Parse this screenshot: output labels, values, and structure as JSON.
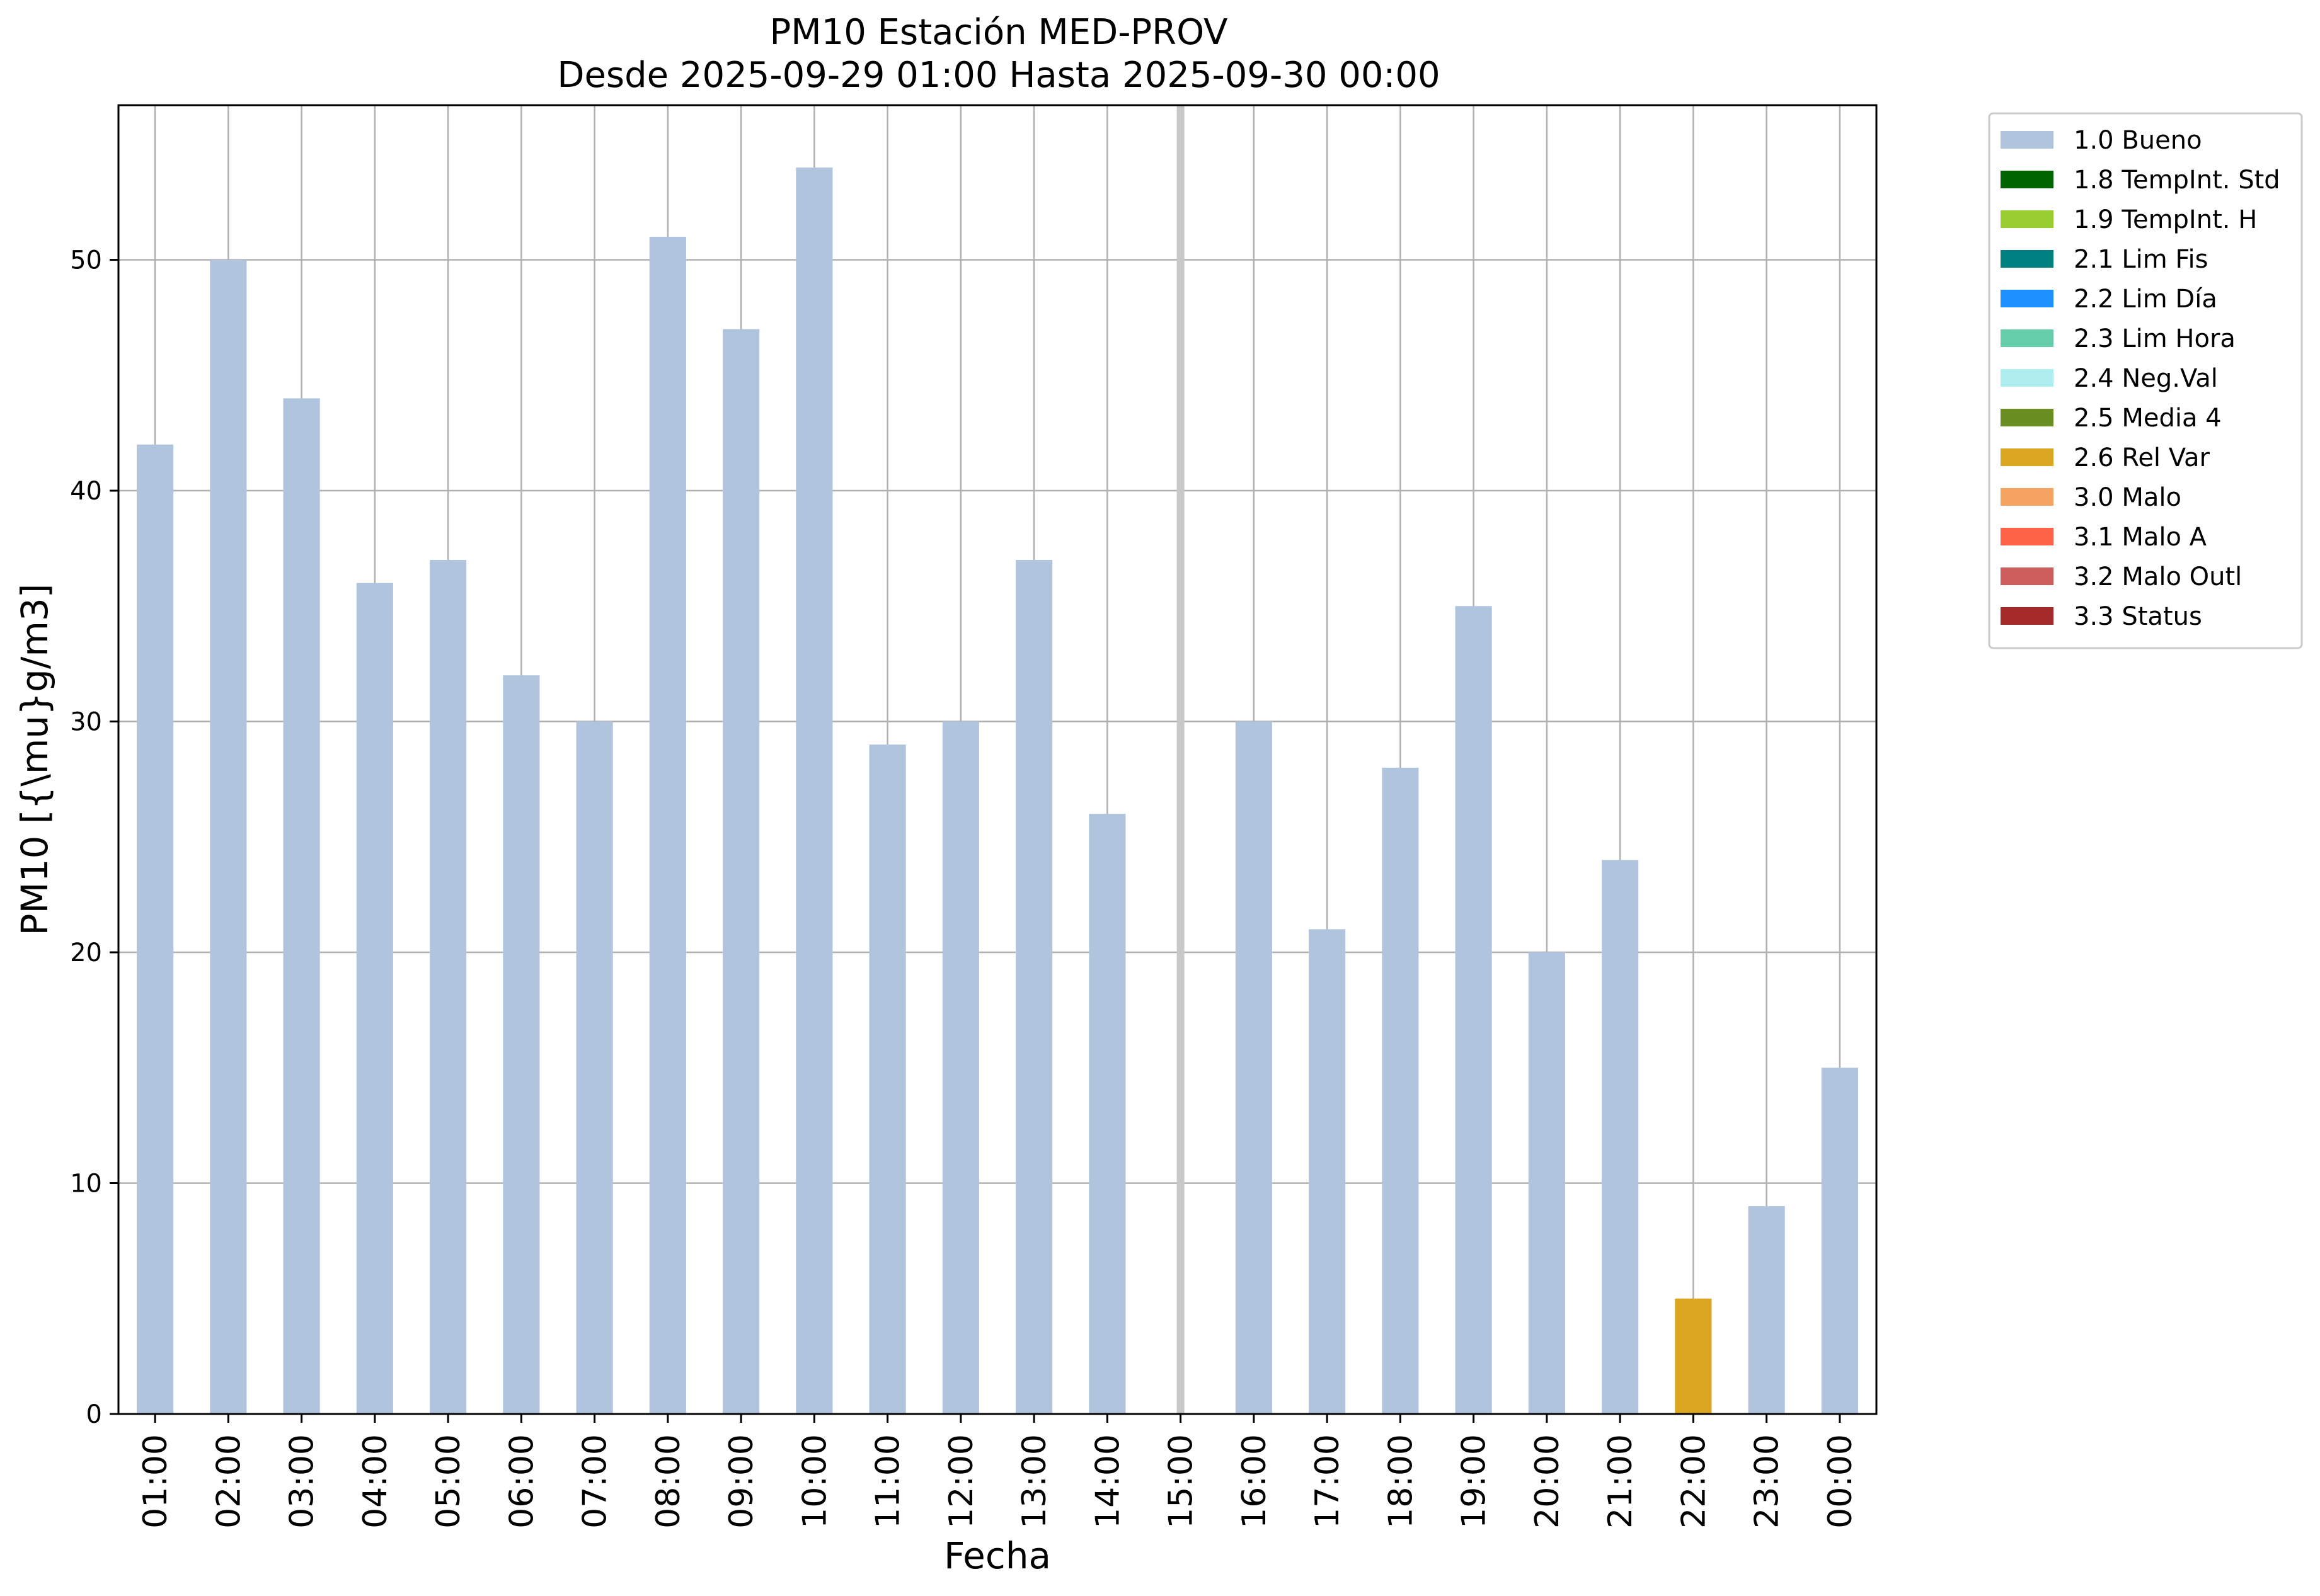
{
  "chart_data": {
    "type": "bar",
    "title": "PM10 Estación MED-PROV",
    "subtitle": "Desde 2025-09-29 01:00 Hasta 2025-09-30 00:00",
    "xlabel": "Fecha",
    "ylabel": "PM10 [{\\mu}g/m3]",
    "ylim": [
      0,
      56.7
    ],
    "yticks": [
      0,
      10,
      20,
      30,
      40,
      50
    ],
    "grid": true,
    "legend_position": "outside-top-right",
    "categories": [
      "01:00",
      "02:00",
      "03:00",
      "04:00",
      "05:00",
      "06:00",
      "07:00",
      "08:00",
      "09:00",
      "10:00",
      "11:00",
      "12:00",
      "13:00",
      "14:00",
      "15:00",
      "16:00",
      "17:00",
      "18:00",
      "19:00",
      "20:00",
      "21:00",
      "22:00",
      "23:00",
      "00:00"
    ],
    "values": [
      42,
      50,
      44,
      36,
      37,
      32,
      30,
      51,
      47,
      54,
      29,
      30,
      37,
      26,
      null,
      30,
      21,
      28,
      35,
      20,
      24,
      5,
      9,
      15
    ],
    "flags": [
      "1.0 Bueno",
      "1.0 Bueno",
      "1.0 Bueno",
      "1.0 Bueno",
      "1.0 Bueno",
      "1.0 Bueno",
      "1.0 Bueno",
      "1.0 Bueno",
      "1.0 Bueno",
      "1.0 Bueno",
      "1.0 Bueno",
      "1.0 Bueno",
      "1.0 Bueno",
      "1.0 Bueno",
      null,
      "1.0 Bueno",
      "1.0 Bueno",
      "1.0 Bueno",
      "1.0 Bueno",
      "1.0 Bueno",
      "1.0 Bueno",
      "2.6 Rel Var",
      "1.0 Bueno",
      "1.0 Bueno"
    ],
    "missing_marker_category": "15:00",
    "legend": [
      {
        "label": "1.0 Bueno",
        "color": "#b0c4de"
      },
      {
        "label": "1.8 TempInt. Std",
        "color": "#006400"
      },
      {
        "label": "1.9 TempInt. H",
        "color": "#9acd32"
      },
      {
        "label": "2.1 Lim Fis",
        "color": "#008080"
      },
      {
        "label": "2.2 Lim Día",
        "color": "#1e90ff"
      },
      {
        "label": "2.3 Lim Hora",
        "color": "#66cdaa"
      },
      {
        "label": "2.4 Neg.Val",
        "color": "#afeeee"
      },
      {
        "label": "2.5 Media 4",
        "color": "#6b8e23"
      },
      {
        "label": "2.6 Rel Var",
        "color": "#daa520"
      },
      {
        "label": "3.0 Malo",
        "color": "#f4a460"
      },
      {
        "label": "3.1 Malo A",
        "color": "#ff6347"
      },
      {
        "label": "3.2 Malo Outl",
        "color": "#cd5c5c"
      },
      {
        "label": "3.3 Status",
        "color": "#a52a2a"
      }
    ]
  }
}
